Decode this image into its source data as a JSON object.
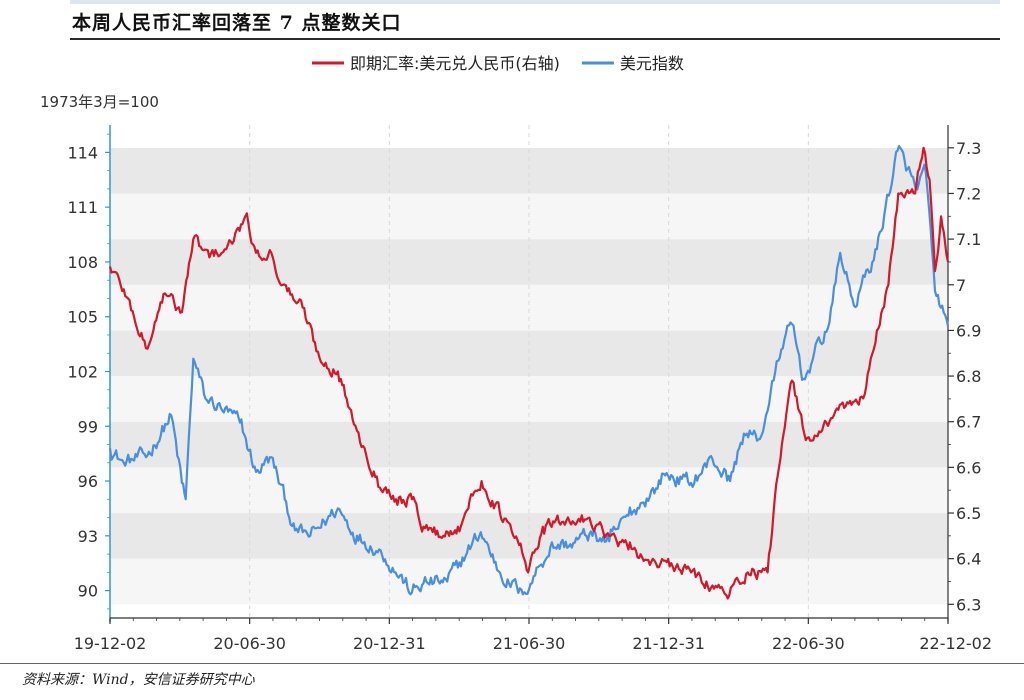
{
  "page": {
    "title": "本周人民币汇率回落至 7 点整数关口",
    "source": "资料来源：Wind，安信证券研究中心"
  },
  "chart_data": {
    "type": "line",
    "title": "本周人民币汇率回落至 7 点整数关口",
    "left_unit_label": "1973年3月=100",
    "x_tick_labels": [
      "19-12-02",
      "20-06-30",
      "20-12-31",
      "21-06-30",
      "21-12-31",
      "22-06-30",
      "22-12-02"
    ],
    "x_range": [
      "2019-12-02",
      "2022-12-02"
    ],
    "y_left": {
      "range": [
        88.5,
        115.5
      ],
      "ticks": [
        90,
        93,
        96,
        99,
        102,
        105,
        108,
        111,
        114
      ]
    },
    "y_right": {
      "range": [
        6.27,
        7.35
      ],
      "ticks": [
        6.3,
        6.4,
        6.5,
        6.6,
        6.7,
        6.8,
        6.9,
        7,
        7.1,
        7.2,
        7.3
      ]
    },
    "legend_position": "top-center",
    "grid": "vertical dashed lines, horizontal alternating bands",
    "series": [
      {
        "name": "即期汇率:美元兑人民币(右轴)",
        "axis": "right",
        "color": "#d0192b",
        "points": [
          [
            "2019-12-02",
            7.04
          ],
          [
            "2019-12-20",
            6.99
          ],
          [
            "2020-01-14",
            6.88
          ],
          [
            "2020-01-20",
            6.86
          ],
          [
            "2020-02-10",
            6.98
          ],
          [
            "2020-03-05",
            6.94
          ],
          [
            "2020-03-20",
            7.1
          ],
          [
            "2020-04-10",
            7.06
          ],
          [
            "2020-05-10",
            7.09
          ],
          [
            "2020-05-27",
            7.15
          ],
          [
            "2020-06-10",
            7.07
          ],
          [
            "2020-06-30",
            7.07
          ],
          [
            "2020-07-15",
            7.0
          ],
          [
            "2020-08-10",
            6.95
          ],
          [
            "2020-09-01",
            6.84
          ],
          [
            "2020-09-25",
            6.81
          ],
          [
            "2020-10-20",
            6.68
          ],
          [
            "2020-11-15",
            6.58
          ],
          [
            "2020-12-10",
            6.53
          ],
          [
            "2020-12-31",
            6.53
          ],
          [
            "2021-01-15",
            6.47
          ],
          [
            "2021-02-10",
            6.45
          ],
          [
            "2021-03-01",
            6.47
          ],
          [
            "2021-04-01",
            6.57
          ],
          [
            "2021-04-25",
            6.5
          ],
          [
            "2021-05-20",
            6.43
          ],
          [
            "2021-06-01",
            6.37
          ],
          [
            "2021-06-20",
            6.47
          ],
          [
            "2021-07-15",
            6.48
          ],
          [
            "2021-08-20",
            6.49
          ],
          [
            "2021-09-15",
            6.45
          ],
          [
            "2021-10-10",
            6.42
          ],
          [
            "2021-11-15",
            6.39
          ],
          [
            "2021-12-31",
            6.37
          ],
          [
            "2022-01-20",
            6.35
          ],
          [
            "2022-02-15",
            6.32
          ],
          [
            "2022-03-15",
            6.37
          ],
          [
            "2022-04-10",
            6.37
          ],
          [
            "2022-04-25",
            6.6
          ],
          [
            "2022-05-12",
            6.79
          ],
          [
            "2022-05-30",
            6.66
          ],
          [
            "2022-06-30",
            6.7
          ],
          [
            "2022-07-25",
            6.74
          ],
          [
            "2022-08-15",
            6.76
          ],
          [
            "2022-08-31",
            6.9
          ],
          [
            "2022-09-15",
            7.0
          ],
          [
            "2022-09-28",
            7.2
          ],
          [
            "2022-10-20",
            7.2
          ],
          [
            "2022-10-31",
            7.3
          ],
          [
            "2022-11-08",
            7.23
          ],
          [
            "2022-11-15",
            7.03
          ],
          [
            "2022-11-23",
            7.15
          ],
          [
            "2022-12-02",
            7.05
          ]
        ]
      },
      {
        "name": "美元指数",
        "axis": "left",
        "color": "#4a8ede",
        "points": [
          [
            "2019-12-02",
            97.8
          ],
          [
            "2019-12-20",
            97.0
          ],
          [
            "2020-01-20",
            97.4
          ],
          [
            "2020-02-20",
            99.6
          ],
          [
            "2020-03-05",
            95.9
          ],
          [
            "2020-03-10",
            95.0
          ],
          [
            "2020-03-20",
            102.7
          ],
          [
            "2020-04-05",
            100.5
          ],
          [
            "2020-04-25",
            100.0
          ],
          [
            "2020-05-20",
            99.2
          ],
          [
            "2020-06-10",
            96.5
          ],
          [
            "2020-06-30",
            97.3
          ],
          [
            "2020-07-31",
            93.3
          ],
          [
            "2020-08-20",
            93.0
          ],
          [
            "2020-09-25",
            94.5
          ],
          [
            "2020-10-20",
            93.0
          ],
          [
            "2020-11-20",
            92.2
          ],
          [
            "2020-12-31",
            89.9
          ],
          [
            "2021-01-15",
            90.4
          ],
          [
            "2021-02-15",
            90.5
          ],
          [
            "2021-03-31",
            93.2
          ],
          [
            "2021-04-25",
            91.0
          ],
          [
            "2021-05-25",
            89.8
          ],
          [
            "2021-06-30",
            92.4
          ],
          [
            "2021-07-30",
            92.6
          ],
          [
            "2021-08-20",
            93.1
          ],
          [
            "2021-09-15",
            92.7
          ],
          [
            "2021-10-10",
            94.1
          ],
          [
            "2021-11-15",
            95.6
          ],
          [
            "2021-11-25",
            96.4
          ],
          [
            "2021-12-31",
            95.9
          ],
          [
            "2022-01-28",
            97.2
          ],
          [
            "2022-02-20",
            96.0
          ],
          [
            "2022-03-10",
            98.6
          ],
          [
            "2022-03-31",
            98.3
          ],
          [
            "2022-04-28",
            103.2
          ],
          [
            "2022-05-12",
            104.6
          ],
          [
            "2022-05-27",
            101.6
          ],
          [
            "2022-06-30",
            104.7
          ],
          [
            "2022-07-14",
            108.5
          ],
          [
            "2022-08-01",
            105.6
          ],
          [
            "2022-08-31",
            108.7
          ],
          [
            "2022-09-27",
            114.1
          ],
          [
            "2022-10-10",
            113.1
          ],
          [
            "2022-10-21",
            112.0
          ],
          [
            "2022-11-03",
            112.9
          ],
          [
            "2022-11-15",
            106.4
          ],
          [
            "2022-12-02",
            104.5
          ]
        ]
      }
    ]
  }
}
